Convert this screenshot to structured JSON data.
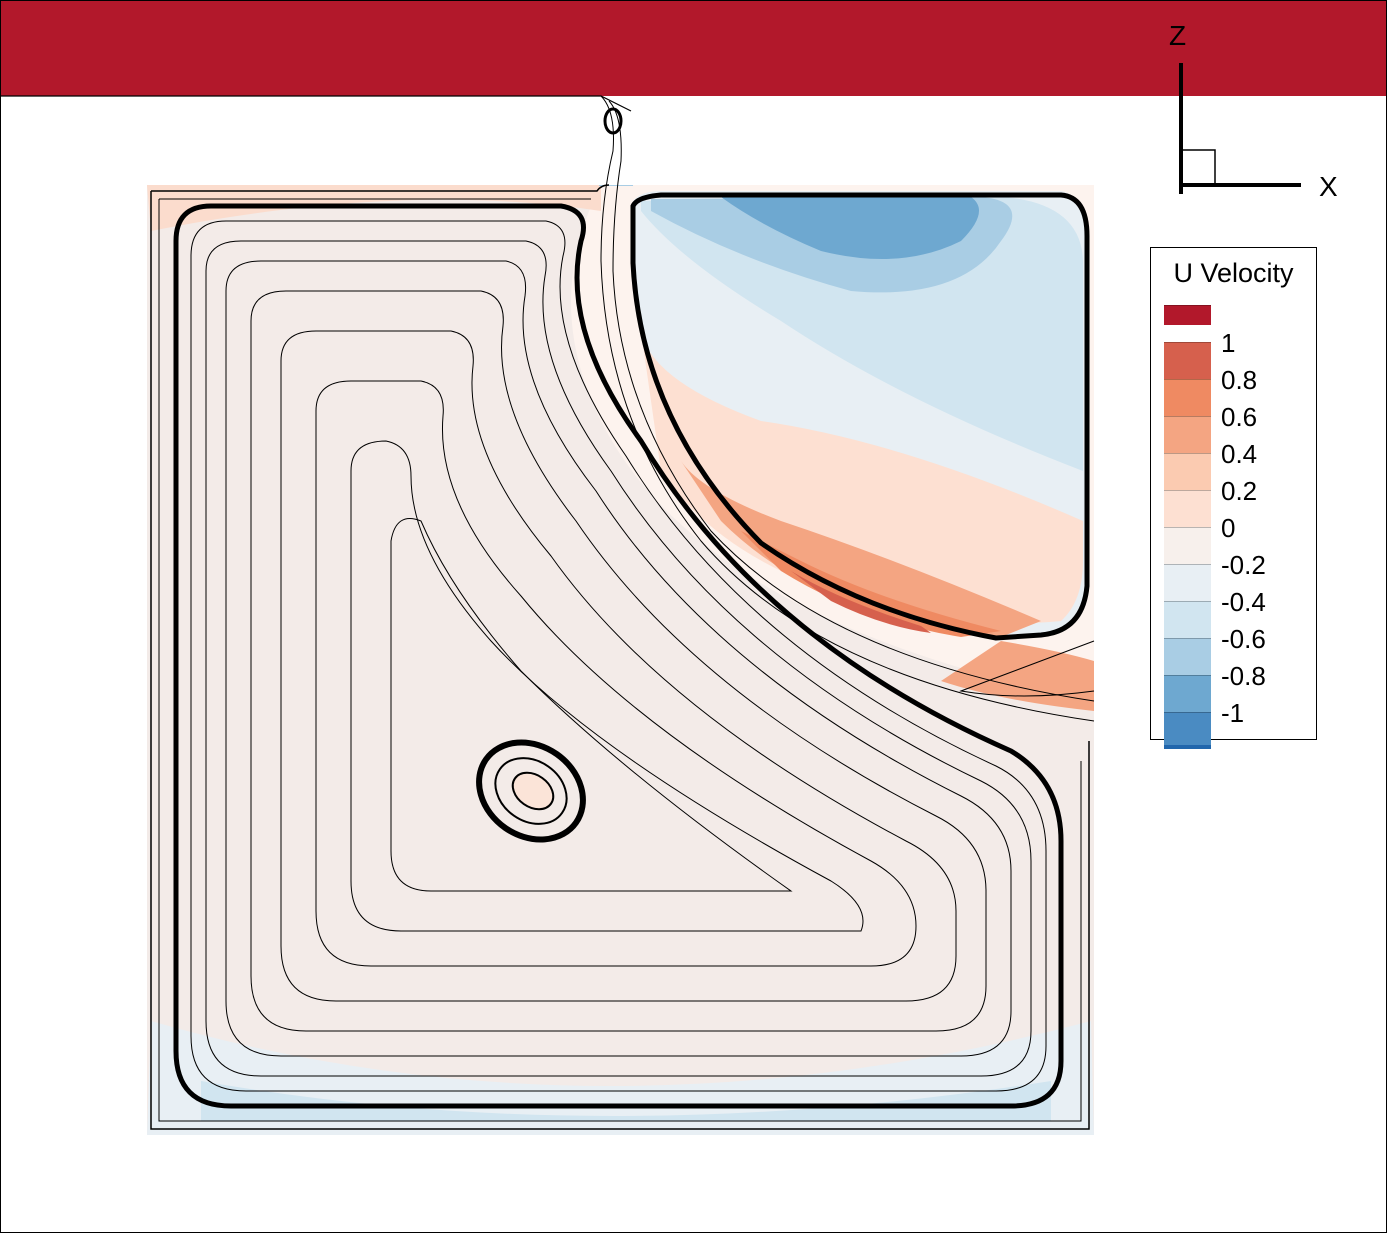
{
  "axes": {
    "vertical": "Z",
    "horizontal": "X"
  },
  "legend": {
    "title": "U Velocity",
    "levels": [
      {
        "label": "",
        "color": "#b2182b"
      },
      {
        "label": "1",
        "color": "#d6604d"
      },
      {
        "label": "0.8",
        "color": "#ef8a62"
      },
      {
        "label": "0.6",
        "color": "#f4a582"
      },
      {
        "label": "0.4",
        "color": "#fbcbb1"
      },
      {
        "label": "0.2",
        "color": "#fde0d2"
      },
      {
        "label": "0",
        "color": "#f7f0ec"
      },
      {
        "label": "-0.2",
        "color": "#e8eff4"
      },
      {
        "label": "-0.4",
        "color": "#d1e5f0"
      },
      {
        "label": "-0.6",
        "color": "#a9cde4"
      },
      {
        "label": "-0.8",
        "color": "#6ea8d0"
      },
      {
        "label": "-1",
        "color": "#4a8bc2",
        "edge": "#2166ac"
      }
    ]
  },
  "colors": {
    "lid": "#b2182b",
    "streamline": "#000000",
    "background": "#ffffff"
  }
}
